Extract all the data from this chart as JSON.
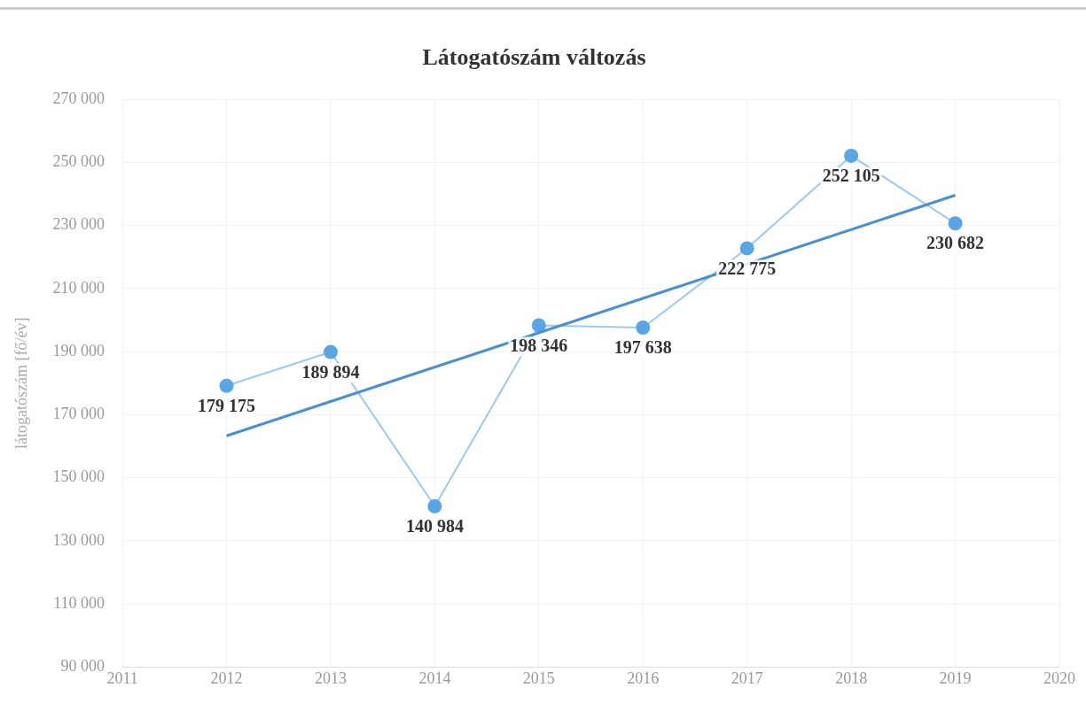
{
  "chart_data": {
    "type": "line",
    "title": "Látogatószám változás",
    "ylabel": "látogatószám [fő/év]",
    "x": [
      2012,
      2013,
      2014,
      2015,
      2016,
      2017,
      2018,
      2019
    ],
    "xlim": [
      2011,
      2020
    ],
    "xticks": [
      2011,
      2012,
      2013,
      2014,
      2015,
      2016,
      2017,
      2018,
      2019,
      2020
    ],
    "ylim": [
      90000,
      270000
    ],
    "yticks": [
      {
        "value": 90000,
        "label": "90 000"
      },
      {
        "value": 110000,
        "label": "110 000"
      },
      {
        "value": 130000,
        "label": "130 000"
      },
      {
        "value": 150000,
        "label": "150 000"
      },
      {
        "value": 170000,
        "label": "170 000"
      },
      {
        "value": 190000,
        "label": "190 000"
      },
      {
        "value": 210000,
        "label": "210 000"
      },
      {
        "value": 230000,
        "label": "230 000"
      },
      {
        "value": 250000,
        "label": "250 000"
      },
      {
        "value": 270000,
        "label": "270 000"
      }
    ],
    "grid": true,
    "legend": false,
    "marker": "circle",
    "series": [
      {
        "color": "#5aa5e6",
        "values": [
          179175,
          189894,
          140984,
          198346,
          197638,
          222775,
          252105,
          230682
        ],
        "value_labels": [
          "179 175",
          "189 894",
          "140 984",
          "198 346",
          "197 638",
          "222 775",
          "252 105",
          "230 682"
        ]
      },
      {
        "color": "#4a90d0",
        "marker": "none",
        "x": [
          2012,
          2019
        ],
        "values": [
          163300,
          239600
        ]
      }
    ]
  }
}
